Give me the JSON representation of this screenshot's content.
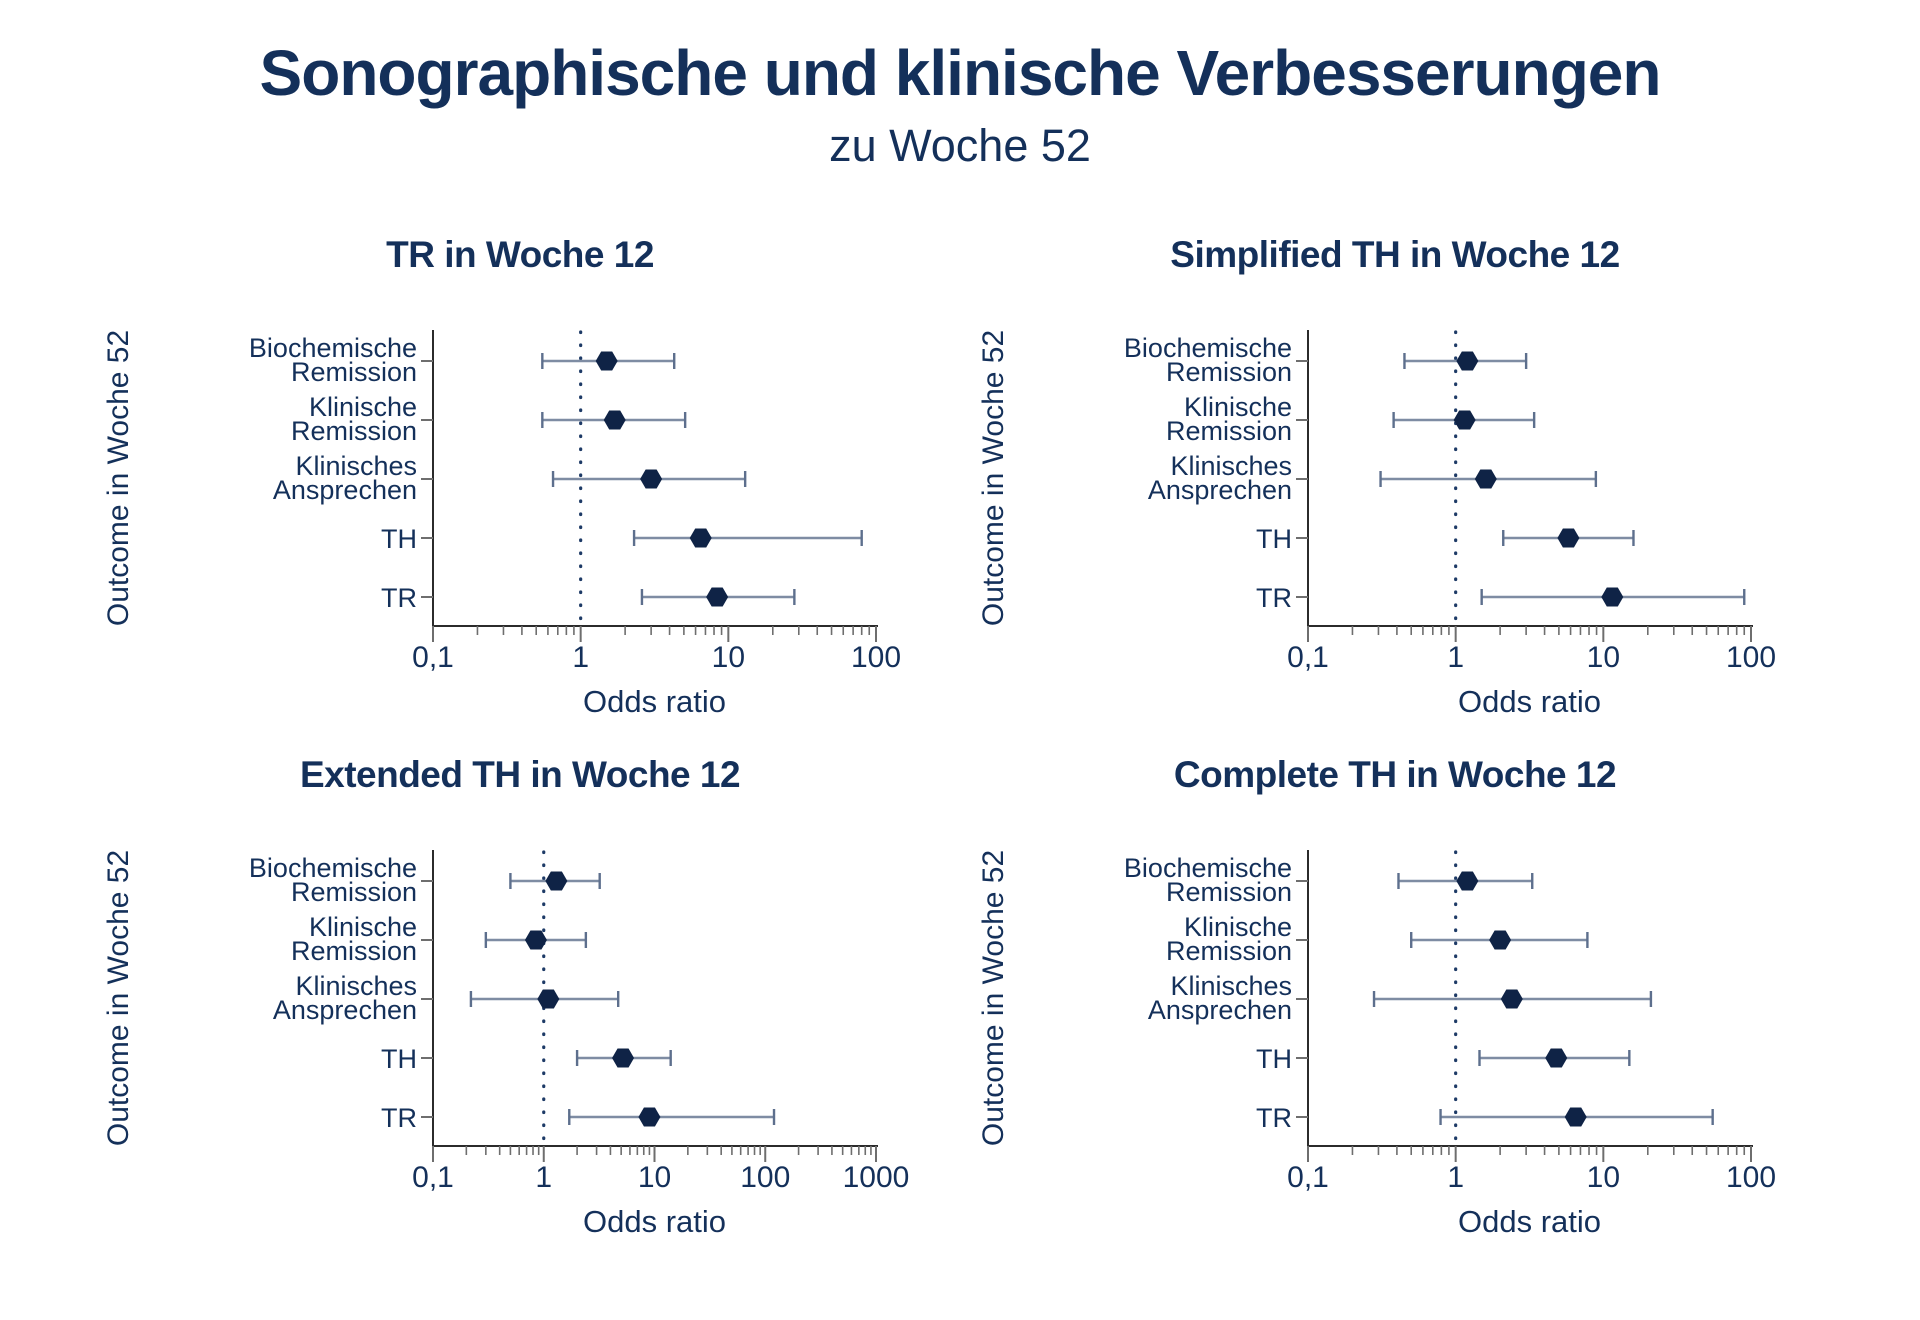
{
  "page": {
    "title": "Sonographische und klinische Verbesserungen",
    "subtitle": "zu Woche 52"
  },
  "colors": {
    "text": "#14305a",
    "marker": "#0f2346",
    "whisker": "#7e8ca3",
    "whisker_cap": "#5d6f8d",
    "axis": "#2b2b2b",
    "tick": "#6e6e6e",
    "ref_line": "#1d3a66"
  },
  "chart_data": [
    {
      "type": "scatter",
      "variant": "forest-plot",
      "title": "TR in Woche 12",
      "ylabel": "Outcome in Woche 52",
      "xlabel": "Odds ratio",
      "xscale": "log",
      "xlim": [
        0.1,
        100
      ],
      "reference_line": 1,
      "xticks": {
        "values": [
          0.1,
          1,
          10,
          100
        ],
        "labels": [
          "0,1",
          "1",
          "10",
          "100"
        ]
      },
      "rows": [
        {
          "label": [
            "Biochemische",
            "Remission"
          ],
          "or": 1.5,
          "ci_low": 0.55,
          "ci_high": 4.3
        },
        {
          "label": [
            "Klinische",
            "Remission"
          ],
          "or": 1.7,
          "ci_low": 0.55,
          "ci_high": 5.1
        },
        {
          "label": [
            "Klinisches",
            "Ansprechen"
          ],
          "or": 3.0,
          "ci_low": 0.65,
          "ci_high": 13
        },
        {
          "label": [
            "TH"
          ],
          "or": 6.5,
          "ci_low": 2.3,
          "ci_high": 80
        },
        {
          "label": [
            "TR"
          ],
          "or": 8.4,
          "ci_low": 2.6,
          "ci_high": 28
        }
      ]
    },
    {
      "type": "scatter",
      "variant": "forest-plot",
      "title": "Simplified TH in Woche 12",
      "ylabel": "Outcome in Woche 52",
      "xlabel": "Odds ratio",
      "xscale": "log",
      "xlim": [
        0.1,
        100
      ],
      "reference_line": 1,
      "xticks": {
        "values": [
          0.1,
          1,
          10,
          100
        ],
        "labels": [
          "0,1",
          "1",
          "10",
          "100"
        ]
      },
      "rows": [
        {
          "label": [
            "Biochemische",
            "Remission"
          ],
          "or": 1.2,
          "ci_low": 0.45,
          "ci_high": 3.0
        },
        {
          "label": [
            "Klinische",
            "Remission"
          ],
          "or": 1.15,
          "ci_low": 0.38,
          "ci_high": 3.4
        },
        {
          "label": [
            "Klinisches",
            "Ansprechen"
          ],
          "or": 1.6,
          "ci_low": 0.31,
          "ci_high": 8.9
        },
        {
          "label": [
            "TH"
          ],
          "or": 5.8,
          "ci_low": 2.1,
          "ci_high": 16
        },
        {
          "label": [
            "TR"
          ],
          "or": 11.5,
          "ci_low": 1.5,
          "ci_high": 90
        }
      ]
    },
    {
      "type": "scatter",
      "variant": "forest-plot",
      "title": "Extended TH in Woche 12",
      "ylabel": "Outcome in Woche 52",
      "xlabel": "Odds ratio",
      "xscale": "log",
      "xlim": [
        0.1,
        1000
      ],
      "reference_line": 1,
      "xticks": {
        "values": [
          0.1,
          1,
          10,
          100,
          1000
        ],
        "labels": [
          "0,1",
          "1",
          "10",
          "100",
          "1000"
        ]
      },
      "rows": [
        {
          "label": [
            "Biochemische",
            "Remission"
          ],
          "or": 1.3,
          "ci_low": 0.5,
          "ci_high": 3.2
        },
        {
          "label": [
            "Klinische",
            "Remission"
          ],
          "or": 0.85,
          "ci_low": 0.3,
          "ci_high": 2.4
        },
        {
          "label": [
            "Klinisches",
            "Ansprechen"
          ],
          "or": 1.1,
          "ci_low": 0.22,
          "ci_high": 4.7
        },
        {
          "label": [
            "TH"
          ],
          "or": 5.2,
          "ci_low": 2.0,
          "ci_high": 14
        },
        {
          "label": [
            "TR"
          ],
          "or": 9.0,
          "ci_low": 1.7,
          "ci_high": 120
        }
      ]
    },
    {
      "type": "scatter",
      "variant": "forest-plot",
      "title": "Complete TH in Woche 12",
      "ylabel": "Outcome in Woche 52",
      "xlabel": "Odds ratio",
      "xscale": "log",
      "xlim": [
        0.1,
        100
      ],
      "reference_line": 1,
      "xticks": {
        "values": [
          0.1,
          1,
          10,
          100
        ],
        "labels": [
          "0,1",
          "1",
          "10",
          "100"
        ]
      },
      "rows": [
        {
          "label": [
            "Biochemische",
            "Remission"
          ],
          "or": 1.2,
          "ci_low": 0.41,
          "ci_high": 3.3
        },
        {
          "label": [
            "Klinische",
            "Remission"
          ],
          "or": 2.0,
          "ci_low": 0.5,
          "ci_high": 7.8
        },
        {
          "label": [
            "Klinisches",
            "Ansprechen"
          ],
          "or": 2.4,
          "ci_low": 0.28,
          "ci_high": 21
        },
        {
          "label": [
            "TH"
          ],
          "or": 4.8,
          "ci_low": 1.45,
          "ci_high": 15
        },
        {
          "label": [
            "TR"
          ],
          "or": 6.5,
          "ci_low": 0.79,
          "ci_high": 55
        }
      ]
    }
  ]
}
